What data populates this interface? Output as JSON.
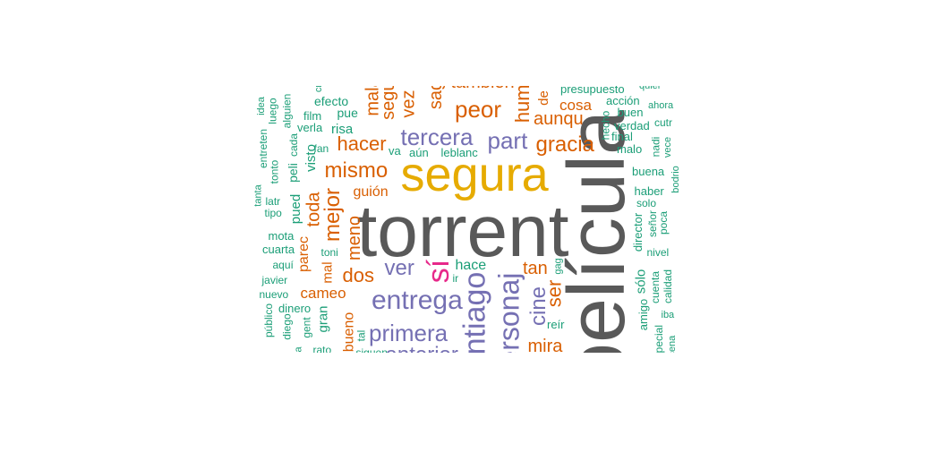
{
  "colors": {
    "gray": "#595959",
    "gold": "#e6ab02",
    "orange": "#d95f02",
    "purple": "#7570b3",
    "teal": "#1b9e77",
    "pink": "#e7298a"
  },
  "words": [
    {
      "text": "película",
      "color": "gray",
      "size": 3
    },
    {
      "text": "torrent",
      "color": "gray",
      "size": 3
    },
    {
      "text": "segura",
      "color": "gold",
      "size": 3
    },
    {
      "text": "santiago",
      "color": "purple",
      "size": 3
    },
    {
      "text": "personaj",
      "color": "purple",
      "size": 3
    },
    {
      "text": "sí",
      "color": "pink",
      "size": 3
    },
    {
      "text": "entrega",
      "color": "purple",
      "size": 2
    },
    {
      "text": "primera",
      "color": "purple",
      "size": 2
    },
    {
      "text": "tercera",
      "color": "purple",
      "size": 2
    },
    {
      "text": "part",
      "color": "purple",
      "size": 2
    },
    {
      "text": "ver",
      "color": "purple",
      "size": 2
    },
    {
      "text": "cine",
      "color": "purple",
      "size": 2
    },
    {
      "text": "peor",
      "color": "orange",
      "size": 2
    },
    {
      "text": "gracia",
      "color": "orange",
      "size": 2
    },
    {
      "text": "mismo",
      "color": "orange",
      "size": 2
    },
    {
      "text": "mejor",
      "color": "orange",
      "size": 2
    },
    {
      "text": "hacer",
      "color": "orange",
      "size": 2
    },
    {
      "text": "dos",
      "color": "orange",
      "size": 2
    },
    {
      "text": "aunqu",
      "color": "orange",
      "size": 2
    },
    {
      "text": "tan",
      "color": "orange",
      "size": 2
    },
    {
      "text": "ser",
      "color": "orange",
      "size": 2
    },
    {
      "text": "mira",
      "color": "orange",
      "size": 2
    },
    {
      "text": "cosa",
      "color": "orange",
      "size": 1
    },
    {
      "text": "humor",
      "color": "orange",
      "size": 2
    },
    {
      "text": "segui",
      "color": "orange",
      "size": 2
    },
    {
      "text": "mala",
      "color": "orange",
      "size": 2
    },
    {
      "text": "vez",
      "color": "orange",
      "size": 2
    },
    {
      "text": "sag",
      "color": "orange",
      "size": 2
    },
    {
      "text": "toda",
      "color": "orange",
      "size": 2
    },
    {
      "text": "meno",
      "color": "orange",
      "size": 2
    },
    {
      "text": "también",
      "color": "orange",
      "size": 2
    },
    {
      "text": "anterior",
      "color": "purple",
      "size": 2
    },
    {
      "text": "cameo",
      "color": "orange",
      "size": 1
    },
    {
      "text": "guión",
      "color": "orange",
      "size": 1
    },
    {
      "text": "parec",
      "color": "orange",
      "size": 1
    },
    {
      "text": "bueno",
      "color": "orange",
      "size": 1
    },
    {
      "text": "mal",
      "color": "orange",
      "size": 1
    },
    {
      "text": "de",
      "color": "orange",
      "size": 1
    },
    {
      "text": "hace",
      "color": "teal",
      "size": 1
    },
    {
      "text": "pued",
      "color": "teal",
      "size": 1
    },
    {
      "text": "visto",
      "color": "teal",
      "size": 1
    },
    {
      "text": "gran",
      "color": "teal",
      "size": 1
    },
    {
      "text": "sólo",
      "color": "teal",
      "size": 1
    },
    {
      "text": "risa",
      "color": "teal",
      "size": 1
    },
    {
      "text": "efecto",
      "color": "teal",
      "size": 1
    },
    {
      "text": "pue",
      "color": "teal",
      "size": 1
    },
    {
      "text": "verla",
      "color": "teal",
      "size": 1
    },
    {
      "text": "film",
      "color": "teal",
      "size": 1
    },
    {
      "text": "fan",
      "color": "teal",
      "size": 1
    },
    {
      "text": "va",
      "color": "teal",
      "size": 1
    },
    {
      "text": "aún",
      "color": "teal",
      "size": 1
    },
    {
      "text": "leblanc",
      "color": "teal",
      "size": 1
    },
    {
      "text": "presupuesto",
      "color": "teal",
      "size": 1
    },
    {
      "text": "acción",
      "color": "teal",
      "size": 1
    },
    {
      "text": "quier",
      "color": "teal",
      "size": 1
    },
    {
      "text": "ahora",
      "color": "teal",
      "size": 1
    },
    {
      "text": "buen",
      "color": "teal",
      "size": 1
    },
    {
      "text": "verdad",
      "color": "teal",
      "size": 1
    },
    {
      "text": "cutr",
      "color": "teal",
      "size": 1
    },
    {
      "text": "final",
      "color": "teal",
      "size": 1
    },
    {
      "text": "malo",
      "color": "teal",
      "size": 1
    },
    {
      "text": "hecho",
      "color": "teal",
      "size": 1
    },
    {
      "text": "nadi",
      "color": "teal",
      "size": 1
    },
    {
      "text": "vece",
      "color": "teal",
      "size": 1
    },
    {
      "text": "buena",
      "color": "teal",
      "size": 1
    },
    {
      "text": "bodrio",
      "color": "teal",
      "size": 1
    },
    {
      "text": "haber",
      "color": "teal",
      "size": 1
    },
    {
      "text": "solo",
      "color": "teal",
      "size": 1
    },
    {
      "text": "señor",
      "color": "teal",
      "size": 1
    },
    {
      "text": "poca",
      "color": "teal",
      "size": 1
    },
    {
      "text": "director",
      "color": "teal",
      "size": 1
    },
    {
      "text": "nivel",
      "color": "teal",
      "size": 1
    },
    {
      "text": "cuenta",
      "color": "teal",
      "size": 1
    },
    {
      "text": "calidad",
      "color": "teal",
      "size": 1
    },
    {
      "text": "amigo",
      "color": "teal",
      "size": 1
    },
    {
      "text": "iba",
      "color": "teal",
      "size": 1
    },
    {
      "text": "especial",
      "color": "teal",
      "size": 1
    },
    {
      "text": "escena",
      "color": "teal",
      "size": 1
    },
    {
      "text": "idea",
      "color": "teal",
      "size": 1
    },
    {
      "text": "luego",
      "color": "teal",
      "size": 1
    },
    {
      "text": "alguien",
      "color": "teal",
      "size": 1
    },
    {
      "text": "entreten",
      "color": "teal",
      "size": 1
    },
    {
      "text": "tonto",
      "color": "teal",
      "size": 1
    },
    {
      "text": "cada",
      "color": "teal",
      "size": 1
    },
    {
      "text": "peli",
      "color": "teal",
      "size": 1
    },
    {
      "text": "tanta",
      "color": "teal",
      "size": 1
    },
    {
      "text": "latr",
      "color": "teal",
      "size": 1
    },
    {
      "text": "tipo",
      "color": "teal",
      "size": 1
    },
    {
      "text": "mota",
      "color": "teal",
      "size": 1
    },
    {
      "text": "cuarta",
      "color": "teal",
      "size": 1
    },
    {
      "text": "toni",
      "color": "teal",
      "size": 1
    },
    {
      "text": "aquí",
      "color": "teal",
      "size": 1
    },
    {
      "text": "javier",
      "color": "teal",
      "size": 1
    },
    {
      "text": "nuevo",
      "color": "teal",
      "size": 1
    },
    {
      "text": "dinero",
      "color": "teal",
      "size": 1
    },
    {
      "text": "público",
      "color": "teal",
      "size": 1
    },
    {
      "text": "diego",
      "color": "teal",
      "size": 1
    },
    {
      "text": "gent",
      "color": "teal",
      "size": 1
    },
    {
      "text": "rato",
      "color": "teal",
      "size": 1
    },
    {
      "text": "tal",
      "color": "teal",
      "size": 1
    },
    {
      "text": "reír",
      "color": "teal",
      "size": 1
    },
    {
      "text": "gag",
      "color": "teal",
      "size": 1
    },
    {
      "text": "ir",
      "color": "teal",
      "size": 1
    },
    {
      "text": "siguen",
      "color": "teal",
      "size": 1
    },
    {
      "text": "da",
      "color": "teal",
      "size": 1
    },
    {
      "text": "cr",
      "color": "teal",
      "size": 1
    }
  ]
}
